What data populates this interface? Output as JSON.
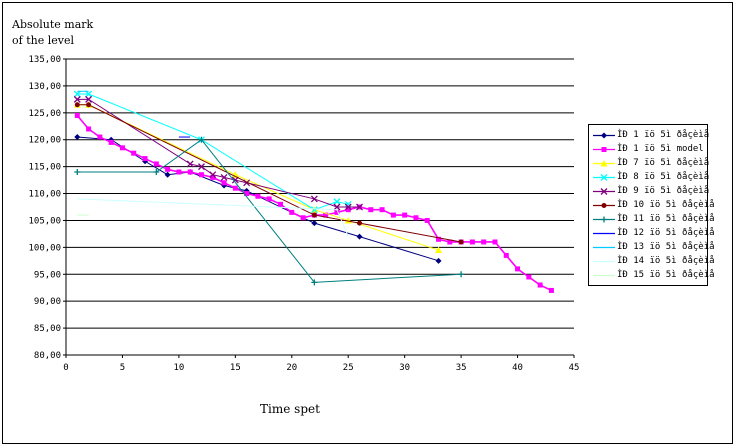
{
  "chart_data": {
    "type": "line",
    "title_lines": [
      "Absolute mark",
      "of the level"
    ],
    "xlabel": "Time spet",
    "ylabel": "",
    "xlim": [
      0,
      45
    ],
    "ylim": [
      80,
      135
    ],
    "x_ticks": [
      "0",
      "5",
      "10",
      "15",
      "20",
      "25",
      "30",
      "35",
      "40",
      "45"
    ],
    "y_ticks": [
      "80,00",
      "85,00",
      "90,00",
      "95,00",
      "100,00",
      "105,00",
      "110,00",
      "115,00",
      "120,00",
      "125,00",
      "130,00",
      "135,00"
    ],
    "grid": "horizontal",
    "legend_position": "right",
    "series": [
      {
        "name": "ÌÐ 1 ïö 5ì  ðåçèìå",
        "color": "#00007f",
        "marker": "diamond",
        "x": [
          1,
          4,
          7,
          9,
          11,
          14,
          16,
          22,
          26,
          33
        ],
        "y": [
          120.5,
          120,
          116,
          113.5,
          114,
          111.5,
          110.5,
          104.5,
          102,
          97.5
        ]
      },
      {
        "name": "ÌÐ 1 ïö 5ì  model",
        "color": "#ff00ff",
        "marker": "square",
        "x": [
          1,
          2,
          3,
          4,
          5,
          6,
          7,
          8,
          9,
          10,
          11,
          12,
          13,
          14,
          15,
          16,
          17,
          18,
          19,
          20,
          21,
          22,
          23,
          24,
          25,
          26,
          27,
          28,
          29,
          30,
          31,
          32,
          33,
          34,
          35,
          36,
          37,
          38,
          39,
          40,
          41,
          42,
          43
        ],
        "y": [
          124.5,
          122,
          120.5,
          119.5,
          118.5,
          117.5,
          116.5,
          115.5,
          114.5,
          114,
          114,
          113.5,
          113,
          112,
          111,
          110,
          109.5,
          109,
          108,
          106.5,
          105.5,
          106,
          106,
          106.5,
          107,
          107.5,
          107,
          107,
          106,
          106,
          105.5,
          105,
          101.5,
          101,
          101,
          101,
          101,
          101,
          98.5,
          96,
          94.5,
          93,
          92
        ]
      },
      {
        "name": "ÌÐ 7 ïö 5ì  ðåçèìå",
        "color": "#ffff00",
        "marker": "triangle",
        "x": [
          1,
          2,
          15,
          22,
          25,
          33
        ],
        "y": [
          126.5,
          126.5,
          113.5,
          107,
          105,
          99.5
        ]
      },
      {
        "name": "ÌÐ 8 ïö 5ì  ðåçèìå",
        "color": "#00ffff",
        "marker": "x",
        "x": [
          1,
          2,
          12,
          22,
          24,
          25
        ],
        "y": [
          128.5,
          128.5,
          120,
          107,
          108.5,
          108
        ]
      },
      {
        "name": "ÌÐ 9 ïö 5ì  ðåçèìå",
        "color": "#7f007f",
        "marker": "x",
        "x": [
          1,
          2,
          11,
          12,
          13,
          14,
          15,
          16,
          22,
          24,
          25,
          26
        ],
        "y": [
          127.5,
          127.5,
          115.5,
          115,
          113.5,
          113,
          112.5,
          112,
          109,
          107.5,
          107.5,
          107.5
        ]
      },
      {
        "name": "ÌÐ 10 ïö 5ì  ðåçèìå",
        "color": "#7f0000",
        "marker": "circle",
        "x": [
          1,
          2,
          22,
          26,
          35
        ],
        "y": [
          126.5,
          126.5,
          106,
          104.5,
          101
        ]
      },
      {
        "name": "ÌÐ 11 ïö 5ì  ðåçèìå",
        "color": "#007f7f",
        "marker": "plus",
        "x": [
          1,
          8,
          12,
          22,
          35
        ],
        "y": [
          114,
          114,
          120,
          93.5,
          95
        ]
      },
      {
        "name": "ÌÐ 12 ïö 5ì  ðåçèìå",
        "color": "#0000ff",
        "marker": "none",
        "x": [
          10,
          11
        ],
        "y": [
          120.5,
          120.5
        ]
      },
      {
        "name": "ÌÐ 13 ïö 5ì  ðåçèìå",
        "color": "#00ccff",
        "marker": "none",
        "x": [
          1,
          2
        ],
        "y": [
          129,
          129
        ]
      },
      {
        "name": "ÌÐ 14 ïö 5ì  ðåçèìå",
        "color": "#ccffff",
        "marker": "none",
        "x": [
          1,
          24,
          25
        ],
        "y": [
          109,
          107,
          102
        ]
      },
      {
        "name": "ÌÐ 15 ïö 5ì  ðåçèìå",
        "color": "#ccffcc",
        "marker": "none",
        "x": [
          1,
          2
        ],
        "y": [
          106,
          106
        ]
      }
    ]
  }
}
